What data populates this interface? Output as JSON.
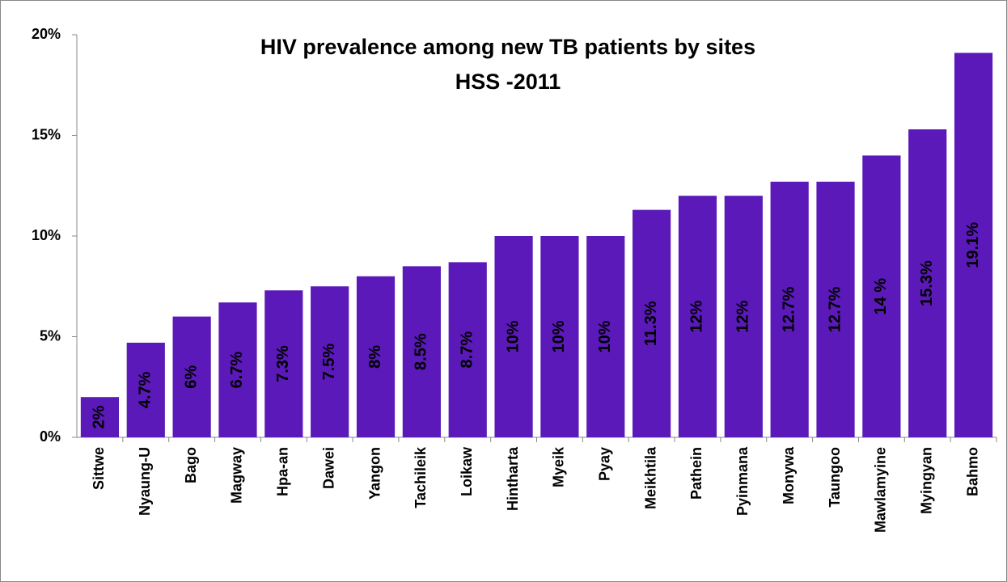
{
  "chart_data": {
    "type": "bar",
    "title": "HIV prevalence among new TB patients by sites",
    "subtitle": "HSS -2011",
    "categories": [
      "Sittwe",
      "Nyaung-U",
      "Bago",
      "Magway",
      "Hpa-an",
      "Dawei",
      "Yangon",
      "Tachileik",
      "Loikaw",
      "Hintharta",
      "Myeik",
      "Pyay",
      "Meikhtila",
      "Pathein",
      "Pyinmana",
      "Monywa",
      "Taungoo",
      "Mawlamyine",
      "Myingyan",
      "Bahmo"
    ],
    "values": [
      2,
      4.7,
      6,
      6.7,
      7.3,
      7.5,
      8,
      8.5,
      8.7,
      10,
      10,
      10,
      11.3,
      12,
      12,
      12.7,
      12.7,
      14,
      15.3,
      19.1
    ],
    "value_labels": [
      "2%",
      "4.7%",
      "6%",
      "6.7%",
      "7.3%",
      "7.5%",
      "8%",
      "8.5%",
      "8.7%",
      "10%",
      "10%",
      "10%",
      "11.3%",
      "12%",
      "12%",
      "12.7%",
      "12.7%",
      "14 %",
      "15.3%",
      "19.1%"
    ],
    "color": "#5a19b8",
    "ylim": [
      0,
      20
    ],
    "yticks": [
      {
        "value": 0,
        "label": "0%"
      },
      {
        "value": 5,
        "label": "5%"
      },
      {
        "value": 10,
        "label": "10%"
      },
      {
        "value": 15,
        "label": "15%"
      },
      {
        "value": 20,
        "label": "20%"
      }
    ],
    "grid": false
  }
}
